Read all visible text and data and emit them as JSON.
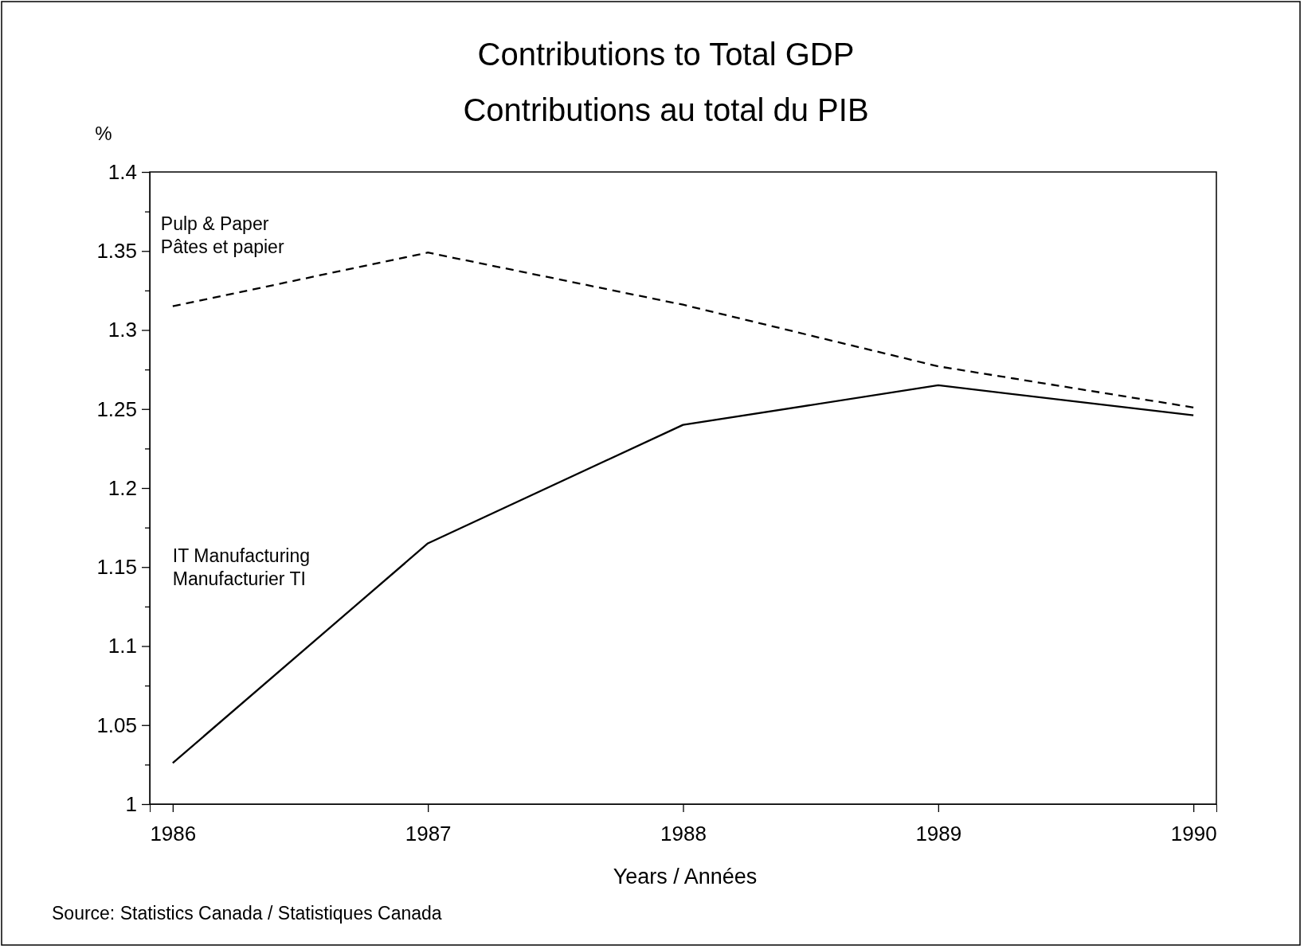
{
  "chart_data": {
    "type": "line",
    "title": "Contributions to Total GDP",
    "subtitle": "Contributions au total du PIB",
    "xlabel": "Years / Années",
    "ylabel": "%",
    "x": [
      1986,
      1987,
      1988,
      1989,
      1990
    ],
    "series": [
      {
        "name": "Pulp & Paper\nPâtes et papier",
        "color": "#000000",
        "line_style": "dashed",
        "values": [
          1.315,
          1.349,
          1.316,
          1.277,
          1.251
        ]
      },
      {
        "name": "IT Manufacturing\nManufacturier TI",
        "color": "#000000",
        "line_style": "solid",
        "values": [
          1.026,
          1.165,
          1.24,
          1.265,
          1.246
        ]
      }
    ],
    "xlim": [
      1985.91,
      1990.09
    ],
    "xticks": [
      1986,
      1987,
      1988,
      1989,
      1990
    ],
    "ylim": [
      1,
      1.4
    ],
    "yticks": [
      1,
      {
        "value": 1.025,
        "label": null
      },
      1.05,
      {
        "value": 1.075,
        "label": null
      },
      1.1,
      {
        "value": 1.125,
        "label": null
      },
      1.15,
      {
        "value": 1.175,
        "label": null
      },
      1.2,
      {
        "value": 1.225,
        "label": null
      },
      1.25,
      {
        "value": 1.275,
        "label": null
      },
      1.3,
      {
        "value": 1.325,
        "label": null
      },
      1.35,
      {
        "value": 1.375,
        "label": null
      },
      1.4
    ],
    "grid": false,
    "legend": false,
    "annotations": [
      "Source: Statistics Canada / Statistiques Canada"
    ]
  }
}
